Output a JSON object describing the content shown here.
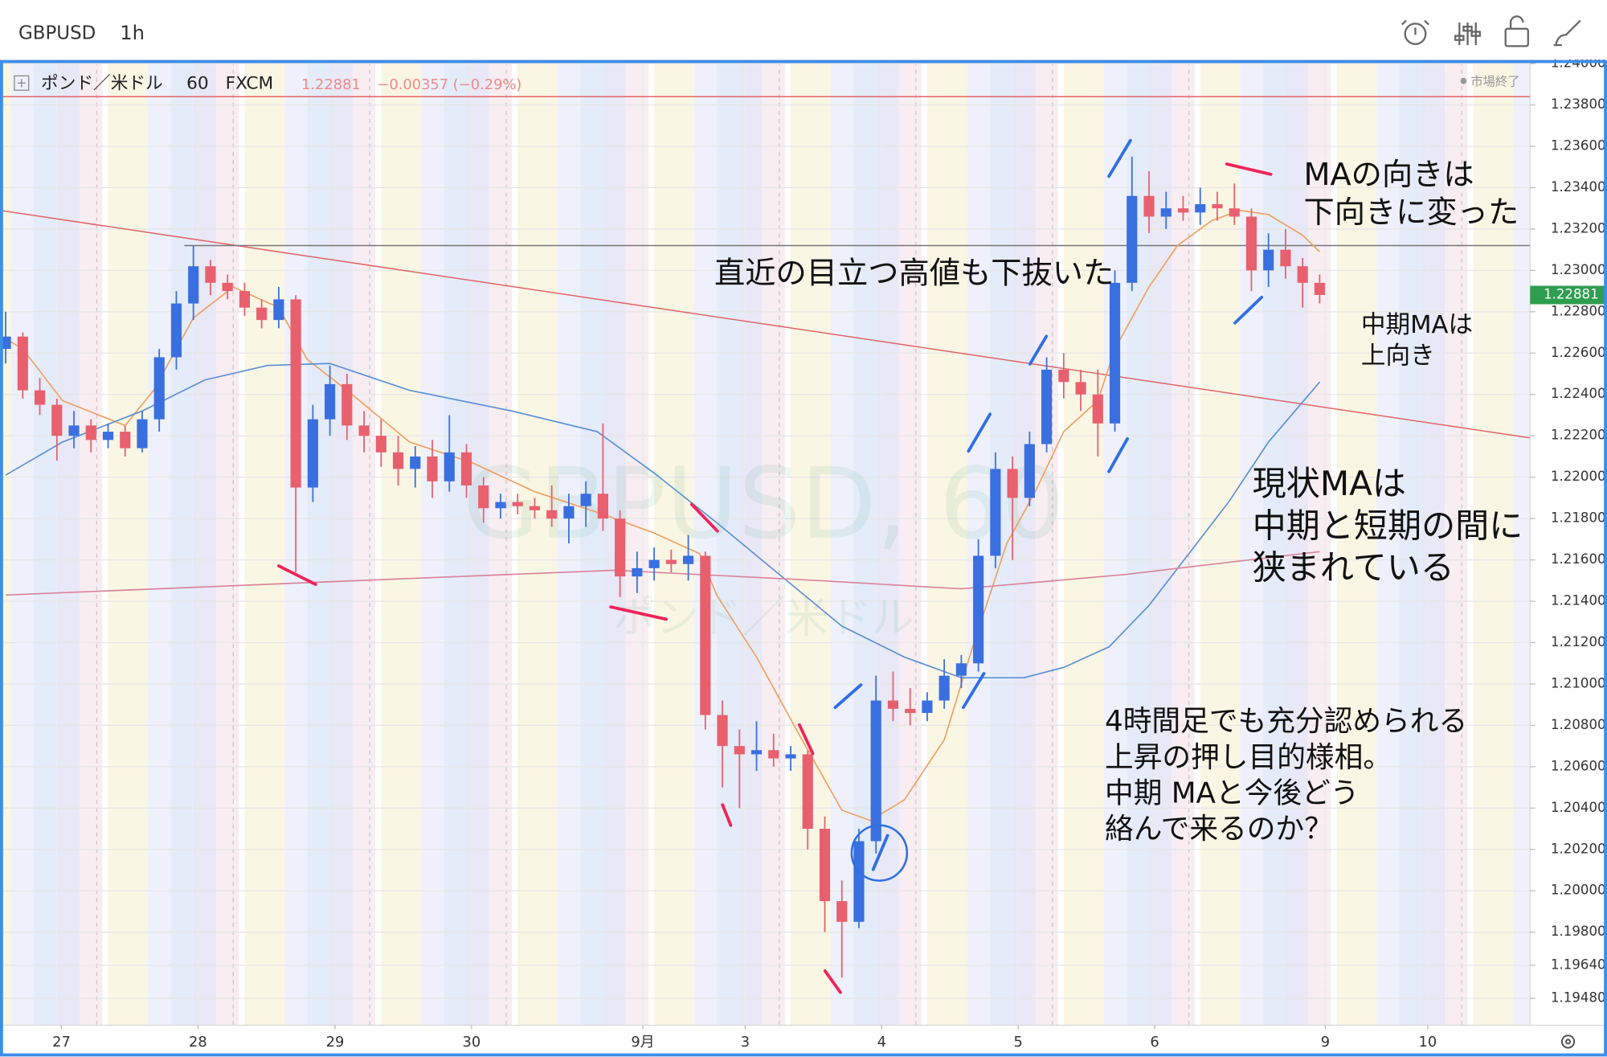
{
  "header": {
    "symbol": "GBPUSD",
    "interval": "1h"
  },
  "chart_data": {
    "type": "candlestick",
    "legend": {
      "name": "ポンド／米ドル",
      "interval": "60",
      "source": "FXCM",
      "change": "−0.00357 (−0.29%)",
      "status": "市場終了"
    },
    "price": 1.22881,
    "watermark": [
      "GBPUSD, 60",
      "ポンド／米ドル"
    ],
    "up_color": "#3a6fe0",
    "down_color": "#e8606e",
    "xlim": [
      0,
      269
    ],
    "ylim": [
      1.1935,
      1.2401
    ],
    "grid": true,
    "xticks": [
      {
        "value": 10.8,
        "label": "27"
      },
      {
        "value": 34.8,
        "label": "28"
      },
      {
        "value": 58.9,
        "label": "29"
      },
      {
        "value": 82.9,
        "label": "30"
      },
      {
        "value": 113,
        "label": "9月"
      },
      {
        "value": 131,
        "label": "3"
      },
      {
        "value": 155,
        "label": "4"
      },
      {
        "value": 179,
        "label": "5"
      },
      {
        "value": 203,
        "label": "6"
      },
      {
        "value": 233,
        "label": "9"
      },
      {
        "value": 251,
        "label": "10"
      }
    ],
    "yticks": [
      {
        "value": 1.24,
        "label": "1.24000"
      },
      {
        "value": 1.238,
        "label": "1.23800"
      },
      {
        "value": 1.236,
        "label": "1.23600"
      },
      {
        "value": 1.234,
        "label": "1.23400"
      },
      {
        "value": 1.232,
        "label": "1.23200"
      },
      {
        "value": 1.23,
        "label": "1.23000"
      },
      {
        "value": 1.228,
        "label": "1.22800"
      },
      {
        "value": 1.226,
        "label": "1.22600"
      },
      {
        "value": 1.224,
        "label": "1.22400"
      },
      {
        "value": 1.222,
        "label": "1.22200"
      },
      {
        "value": 1.22,
        "label": "1.22000"
      },
      {
        "value": 1.218,
        "label": "1.21800"
      },
      {
        "value": 1.216,
        "label": "1.21600"
      },
      {
        "value": 1.214,
        "label": "1.21400"
      },
      {
        "value": 1.212,
        "label": "1.21200"
      },
      {
        "value": 1.21,
        "label": "1.21000"
      },
      {
        "value": 1.208,
        "label": "1.20800"
      },
      {
        "value": 1.206,
        "label": "1.20600"
      },
      {
        "value": 1.204,
        "label": "1.20400"
      },
      {
        "value": 1.202,
        "label": "1.20200"
      },
      {
        "value": 1.2,
        "label": "1.20000"
      },
      {
        "value": 1.198,
        "label": "1.19800"
      },
      {
        "value": 1.1964,
        "label": "1.19640"
      },
      {
        "value": 1.1948,
        "label": "1.19480"
      }
    ],
    "candles": {
      "x": [
        1,
        4,
        7,
        10,
        13,
        16,
        19,
        22,
        25,
        28,
        31,
        34,
        37,
        40,
        43,
        46,
        49,
        52,
        55,
        58,
        61,
        64,
        67,
        70,
        73,
        76,
        79,
        82,
        85,
        88,
        91,
        94,
        97,
        100,
        103,
        106,
        109,
        112,
        115,
        118,
        121,
        124,
        127,
        130,
        133,
        136,
        139,
        142,
        145,
        148,
        151,
        154,
        157,
        160,
        163,
        166,
        169,
        172,
        175,
        178,
        181,
        184,
        187,
        190,
        193,
        196,
        199,
        202,
        205,
        208,
        211,
        214,
        217,
        220,
        223,
        226,
        229,
        232
      ],
      "open": [
        1.2262,
        1.2268,
        1.2242,
        1.2235,
        1.222,
        1.2225,
        1.2218,
        1.2222,
        1.2214,
        1.2228,
        1.2258,
        1.2284,
        1.2302,
        1.2294,
        1.229,
        1.2282,
        1.2276,
        1.2286,
        1.2195,
        1.2228,
        1.2245,
        1.2225,
        1.222,
        1.2212,
        1.2204,
        1.221,
        1.2198,
        1.2212,
        1.2196,
        1.2185,
        1.2188,
        1.2186,
        1.2184,
        1.218,
        1.2186,
        1.2192,
        1.218,
        1.2152,
        1.2156,
        1.216,
        1.2158,
        1.2162,
        1.2085,
        1.207,
        1.2066,
        1.2068,
        1.2064,
        1.2066,
        1.203,
        1.1995,
        1.1985,
        1.2024,
        1.2092,
        1.2088,
        1.2086,
        1.2092,
        1.2104,
        1.211,
        1.2162,
        1.2204,
        1.219,
        1.2216,
        1.2252,
        1.2246,
        1.224,
        1.2226,
        1.2294,
        1.2336,
        1.2326,
        1.233,
        1.2328,
        1.2332,
        1.233,
        1.2326,
        1.23,
        1.231,
        1.2302,
        1.2294
      ],
      "high": [
        1.228,
        1.227,
        1.2248,
        1.2238,
        1.2232,
        1.2228,
        1.2226,
        1.2225,
        1.2232,
        1.2262,
        1.229,
        1.2312,
        1.2305,
        1.2298,
        1.2294,
        1.2286,
        1.2292,
        1.2288,
        1.2235,
        1.2254,
        1.225,
        1.2232,
        1.2228,
        1.222,
        1.2215,
        1.2218,
        1.223,
        1.2216,
        1.22,
        1.2192,
        1.2192,
        1.219,
        1.2196,
        1.2192,
        1.2198,
        1.2226,
        1.2184,
        1.2164,
        1.2166,
        1.2165,
        1.2172,
        1.2164,
        1.2092,
        1.2078,
        1.2082,
        1.2076,
        1.207,
        1.2068,
        1.2036,
        1.2005,
        1.203,
        1.2104,
        1.2106,
        1.2098,
        1.2096,
        1.2112,
        1.2114,
        1.217,
        1.2212,
        1.221,
        1.2222,
        1.2258,
        1.226,
        1.2252,
        1.2252,
        1.23,
        1.2355,
        1.2348,
        1.2338,
        1.2336,
        1.234,
        1.2338,
        1.2342,
        1.233,
        1.2318,
        1.232,
        1.2306,
        1.2298
      ],
      "low": [
        1.2255,
        1.2238,
        1.223,
        1.2208,
        1.2214,
        1.2212,
        1.2214,
        1.221,
        1.2212,
        1.2222,
        1.2252,
        1.2276,
        1.2288,
        1.2286,
        1.2278,
        1.2272,
        1.2272,
        1.2154,
        1.2188,
        1.222,
        1.2218,
        1.2212,
        1.2205,
        1.2196,
        1.2195,
        1.219,
        1.2193,
        1.219,
        1.2178,
        1.218,
        1.2182,
        1.218,
        1.2176,
        1.2168,
        1.2176,
        1.2174,
        1.2142,
        1.2144,
        1.215,
        1.2154,
        1.215,
        1.2078,
        1.205,
        1.204,
        1.2058,
        1.206,
        1.2058,
        1.202,
        1.198,
        1.1958,
        1.1982,
        1.2018,
        1.2082,
        1.208,
        1.2082,
        1.2088,
        1.2098,
        1.2106,
        1.2156,
        1.216,
        1.2186,
        1.2212,
        1.2238,
        1.2232,
        1.221,
        1.2222,
        1.229,
        1.2318,
        1.232,
        1.2324,
        1.2322,
        1.2324,
        1.2322,
        1.229,
        1.2292,
        1.2296,
        1.2282,
        1.2284
      ],
      "close": [
        1.2268,
        1.2242,
        1.2235,
        1.222,
        1.2225,
        1.2218,
        1.2222,
        1.2214,
        1.2228,
        1.2258,
        1.2284,
        1.2302,
        1.2294,
        1.229,
        1.2282,
        1.2276,
        1.2286,
        1.2195,
        1.2228,
        1.2245,
        1.2225,
        1.222,
        1.2212,
        1.2204,
        1.221,
        1.2198,
        1.2212,
        1.2196,
        1.2185,
        1.2188,
        1.2186,
        1.2184,
        1.218,
        1.2186,
        1.2192,
        1.218,
        1.2152,
        1.2156,
        1.216,
        1.2158,
        1.2162,
        1.2085,
        1.207,
        1.2066,
        1.2068,
        1.2064,
        1.2066,
        1.203,
        1.1995,
        1.1985,
        1.2024,
        1.2092,
        1.2088,
        1.2086,
        1.2092,
        1.2104,
        1.211,
        1.2162,
        1.2204,
        1.219,
        1.2216,
        1.2252,
        1.2246,
        1.224,
        1.2226,
        1.2294,
        1.2336,
        1.2326,
        1.233,
        1.2328,
        1.2332,
        1.233,
        1.2326,
        1.23,
        1.231,
        1.2302,
        1.2294,
        1.22881
      ]
    },
    "series": [
      {
        "color": "#f0a060",
        "x": [
          1,
          4,
          11,
          22,
          27,
          34,
          41,
          49,
          54,
          61,
          72,
          83,
          94,
          105,
          115,
          123,
          126,
          133,
          141,
          148,
          153,
          159,
          166,
          171,
          177,
          182,
          187,
          193,
          196,
          202,
          207,
          213,
          218,
          223,
          229,
          232
        ],
        "values": [
          1.2267,
          1.2262,
          1.2237,
          1.2225,
          1.2242,
          1.2277,
          1.2292,
          1.2282,
          1.2257,
          1.2242,
          1.2217,
          1.2207,
          1.2193,
          1.2183,
          1.2173,
          1.2163,
          1.2143,
          1.2113,
          1.2073,
          1.2039,
          1.2034,
          1.2044,
          1.2073,
          1.2118,
          1.2168,
          1.2193,
          1.2222,
          1.2237,
          1.2262,
          1.2292,
          1.2312,
          1.2324,
          1.2329,
          1.2327,
          1.2317,
          1.2309
        ]
      },
      {
        "color": "#5b8fd6",
        "x": [
          1,
          11,
          25,
          36,
          47,
          58,
          72,
          90,
          105,
          115,
          126,
          137,
          148,
          159,
          169,
          180,
          187,
          195,
          202,
          209,
          216,
          223,
          232
        ],
        "values": [
          1.2201,
          1.2217,
          1.2232,
          1.2247,
          1.2254,
          1.2255,
          1.2242,
          1.2232,
          1.2222,
          1.2202,
          1.2178,
          1.2153,
          1.2128,
          1.2113,
          1.2103,
          1.2103,
          1.2108,
          1.2118,
          1.2138,
          1.2163,
          1.2188,
          1.2217,
          1.2246
        ]
      },
      {
        "color": "#d9849c",
        "x": [
          1,
          54,
          108,
          144,
          169,
          198,
          232
        ],
        "values": [
          1.2143,
          1.2149,
          1.2155,
          1.215,
          1.2146,
          1.2153,
          1.2164
        ]
      }
    ],
    "lines": [
      {
        "color": "#e06666",
        "x": [
          0,
          269
        ],
        "values": [
          1.2329,
          1.2219
        ]
      },
      {
        "color": "#777777",
        "x": [
          32.4,
          269
        ],
        "values": [
          1.2312,
          1.2312
        ]
      },
      {
        "color": "#e06666",
        "x": [
          0,
          269
        ],
        "values": [
          1.2384,
          1.2384
        ]
      }
    ],
    "annotations": [
      {
        "lines": [
          "直近の目立つ高値も下抜いた"
        ]
      },
      {
        "lines": [
          "MAの向きは",
          "下向きに変った"
        ]
      },
      {
        "lines": [
          "中期MAは",
          "上向き"
        ]
      },
      {
        "lines": [
          "現状MAは",
          "中期と短期の間に",
          "狭まれている"
        ]
      },
      {
        "lines": [
          "4時間足でも充分認められる",
          "上昇の押し目的様相。",
          "中期 MAと今後どう",
          "絡んで来るのか？"
        ]
      }
    ]
  }
}
